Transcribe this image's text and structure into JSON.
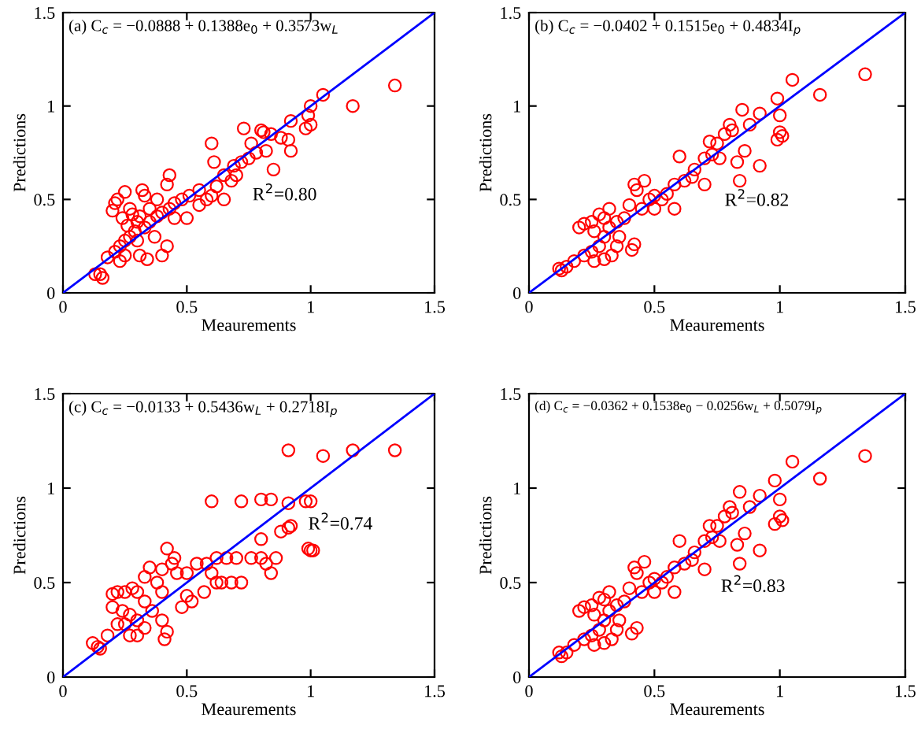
{
  "chart_data": [
    {
      "type": "scatter",
      "title": "(a) C$_{c}$ = −0.0888 + 0.1388e$_{0}$ + 0.3573w$_{L}$",
      "xlabel": "Meaurements",
      "ylabel": "Predictions",
      "annotations": [
        "R$^{2}$=0.80"
      ],
      "xlim": [
        0,
        1.5
      ],
      "ylim": [
        0,
        1.5
      ],
      "xticks": [
        0,
        0.5,
        1,
        1.5
      ],
      "yticks": [
        0,
        0.5,
        1,
        1.5
      ],
      "grid": false,
      "series": [
        {
          "marker": "circle",
          "color": "#ff0000",
          "x": [
            1.34,
            1.17,
            1.05,
            1.0,
            0.99,
            0.98,
            1.0,
            0.92,
            0.92,
            0.91,
            0.85,
            0.81,
            0.8,
            0.84,
            0.73,
            0.76,
            0.82,
            0.88,
            0.6,
            0.61,
            0.69,
            0.72,
            0.65,
            0.68,
            0.62,
            0.55,
            0.51,
            0.48,
            0.45,
            0.43,
            0.42,
            0.43,
            0.4,
            0.38,
            0.35,
            0.32,
            0.33,
            0.25,
            0.22,
            0.21,
            0.2,
            0.24,
            0.27,
            0.28,
            0.3,
            0.29,
            0.27,
            0.25,
            0.23,
            0.21,
            0.25,
            0.31,
            0.34,
            0.23,
            0.18,
            0.15,
            0.13,
            0.16,
            0.4,
            0.42,
            0.37,
            0.3,
            0.33,
            0.5,
            0.55,
            0.6,
            0.65,
            0.58,
            0.38,
            0.45,
            0.35,
            0.26,
            0.31,
            0.7,
            0.75,
            0.78
          ],
          "values": [
            1.11,
            1.0,
            1.06,
            1.0,
            0.95,
            0.88,
            0.9,
            0.92,
            0.76,
            0.82,
            0.66,
            0.86,
            0.87,
            0.85,
            0.88,
            0.8,
            0.76,
            0.83,
            0.8,
            0.7,
            0.68,
            0.7,
            0.63,
            0.6,
            0.57,
            0.55,
            0.52,
            0.5,
            0.48,
            0.63,
            0.58,
            0.45,
            0.43,
            0.41,
            0.38,
            0.55,
            0.52,
            0.54,
            0.5,
            0.48,
            0.44,
            0.4,
            0.45,
            0.42,
            0.38,
            0.33,
            0.3,
            0.28,
            0.25,
            0.22,
            0.2,
            0.2,
            0.18,
            0.17,
            0.19,
            0.1,
            0.1,
            0.08,
            0.2,
            0.25,
            0.3,
            0.28,
            0.35,
            0.4,
            0.47,
            0.52,
            0.5,
            0.5,
            0.5,
            0.4,
            0.45,
            0.36,
            0.41,
            0.63,
            0.72,
            0.75
          ]
        },
        {
          "type": "line",
          "color": "#0000ff",
          "x": [
            0,
            1.5
          ],
          "values": [
            0,
            1.5
          ]
        }
      ]
    },
    {
      "type": "scatter",
      "title": "(b) C$_{c}$ = −0.0402 + 0.1515e$_{0}$ + 0.4834I$_{p}$",
      "xlabel": "Meaurements",
      "ylabel": "Predictions",
      "annotations": [
        "R$^{2}$=0.82"
      ],
      "xlim": [
        0,
        1.5
      ],
      "ylim": [
        0,
        1.5
      ],
      "xticks": [
        0,
        0.5,
        1,
        1.5
      ],
      "yticks": [
        0,
        0.5,
        1,
        1.5
      ],
      "grid": false,
      "series": [
        {
          "marker": "circle",
          "color": "#ff0000",
          "x": [
            1.34,
            1.16,
            1.05,
            0.99,
            1.0,
            1.0,
            0.99,
            1.01,
            0.92,
            0.92,
            0.88,
            0.85,
            0.84,
            0.86,
            0.83,
            0.8,
            0.81,
            0.78,
            0.75,
            0.72,
            0.7,
            0.7,
            0.66,
            0.6,
            0.62,
            0.58,
            0.55,
            0.58,
            0.5,
            0.48,
            0.46,
            0.42,
            0.43,
            0.4,
            0.45,
            0.41,
            0.42,
            0.38,
            0.35,
            0.32,
            0.3,
            0.28,
            0.25,
            0.22,
            0.2,
            0.26,
            0.3,
            0.28,
            0.25,
            0.22,
            0.26,
            0.3,
            0.33,
            0.35,
            0.18,
            0.15,
            0.13,
            0.12,
            0.32,
            0.36,
            0.5,
            0.53,
            0.65,
            0.73,
            0.76
          ],
          "values": [
            1.17,
            1.06,
            1.14,
            1.04,
            0.95,
            0.86,
            0.82,
            0.84,
            0.96,
            0.68,
            0.9,
            0.98,
            0.6,
            0.76,
            0.7,
            0.9,
            0.87,
            0.85,
            0.8,
            0.81,
            0.72,
            0.58,
            0.66,
            0.73,
            0.6,
            0.58,
            0.53,
            0.45,
            0.52,
            0.5,
            0.6,
            0.58,
            0.55,
            0.47,
            0.45,
            0.23,
            0.26,
            0.4,
            0.38,
            0.45,
            0.4,
            0.42,
            0.38,
            0.37,
            0.35,
            0.33,
            0.3,
            0.25,
            0.22,
            0.2,
            0.17,
            0.18,
            0.2,
            0.25,
            0.17,
            0.14,
            0.12,
            0.13,
            0.35,
            0.3,
            0.45,
            0.5,
            0.62,
            0.74,
            0.72
          ]
        },
        {
          "type": "line",
          "color": "#0000ff",
          "x": [
            0,
            1.5
          ],
          "values": [
            0,
            1.5
          ]
        }
      ]
    },
    {
      "type": "scatter",
      "title": "(c) C$_{c}$ = −0.0133 + 0.5436w$_{L}$ + 0.2718I$_{p}$",
      "xlabel": "Meaurements",
      "ylabel": "Predictions",
      "annotations": [
        "R$^{2}$=0.74"
      ],
      "xlim": [
        0,
        1.5
      ],
      "ylim": [
        0,
        1.5
      ],
      "xticks": [
        0,
        0.5,
        1,
        1.5
      ],
      "yticks": [
        0,
        0.5,
        1,
        1.5
      ],
      "grid": false,
      "series": [
        {
          "marker": "circle",
          "color": "#ff0000",
          "x": [
            1.34,
            1.17,
            1.05,
            0.91,
            0.6,
            0.72,
            0.8,
            0.84,
            0.91,
            0.98,
            1.0,
            0.92,
            0.91,
            0.88,
            0.8,
            0.99,
            1.0,
            1.01,
            0.86,
            0.84,
            0.82,
            0.8,
            0.76,
            0.7,
            0.66,
            0.62,
            0.58,
            0.54,
            0.72,
            0.68,
            0.64,
            0.62,
            0.57,
            0.52,
            0.5,
            0.48,
            0.46,
            0.44,
            0.42,
            0.45,
            0.4,
            0.35,
            0.33,
            0.38,
            0.4,
            0.41,
            0.42,
            0.4,
            0.36,
            0.33,
            0.3,
            0.28,
            0.25,
            0.22,
            0.2,
            0.2,
            0.24,
            0.27,
            0.3,
            0.25,
            0.22,
            0.27,
            0.3,
            0.18,
            0.15,
            0.12,
            0.14,
            0.33,
            0.5,
            0.6
          ],
          "values": [
            1.2,
            1.2,
            1.17,
            1.2,
            0.93,
            0.93,
            0.94,
            0.94,
            0.92,
            0.93,
            0.93,
            0.8,
            0.79,
            0.77,
            0.73,
            0.68,
            0.67,
            0.67,
            0.63,
            0.55,
            0.6,
            0.63,
            0.63,
            0.63,
            0.63,
            0.63,
            0.6,
            0.6,
            0.5,
            0.5,
            0.5,
            0.5,
            0.45,
            0.4,
            0.43,
            0.37,
            0.55,
            0.6,
            0.68,
            0.63,
            0.57,
            0.58,
            0.53,
            0.5,
            0.45,
            0.2,
            0.24,
            0.3,
            0.35,
            0.4,
            0.45,
            0.47,
            0.45,
            0.45,
            0.44,
            0.37,
            0.35,
            0.33,
            0.3,
            0.28,
            0.28,
            0.22,
            0.22,
            0.22,
            0.15,
            0.18,
            0.16,
            0.26,
            0.55,
            0.55
          ]
        },
        {
          "type": "line",
          "color": "#0000ff",
          "x": [
            0,
            1.5
          ],
          "values": [
            0,
            1.5
          ]
        }
      ]
    },
    {
      "type": "scatter",
      "title": "(d) C$_{c}$ = −0.0362 + 0.1538e$_{0}$ − 0.0256w$_{L}$ + 0.5079I$_{p}$",
      "xlabel": "Meaurements",
      "ylabel": "Predictions",
      "annotations": [
        "R$^{2}$=0.83"
      ],
      "xlim": [
        0,
        1.5
      ],
      "ylim": [
        0,
        1.5
      ],
      "xticks": [
        0,
        0.5,
        1,
        1.5
      ],
      "yticks": [
        0,
        0.5,
        1,
        1.5
      ],
      "grid": false,
      "series": [
        {
          "marker": "circle",
          "color": "#ff0000",
          "x": [
            1.34,
            1.16,
            1.05,
            0.98,
            1.0,
            1.0,
            0.98,
            1.01,
            0.92,
            0.92,
            0.88,
            0.84,
            0.84,
            0.86,
            0.83,
            0.8,
            0.81,
            0.78,
            0.75,
            0.72,
            0.7,
            0.7,
            0.66,
            0.6,
            0.62,
            0.58,
            0.55,
            0.58,
            0.5,
            0.48,
            0.46,
            0.42,
            0.43,
            0.4,
            0.45,
            0.41,
            0.43,
            0.38,
            0.35,
            0.32,
            0.3,
            0.28,
            0.25,
            0.22,
            0.2,
            0.26,
            0.3,
            0.28,
            0.25,
            0.22,
            0.26,
            0.3,
            0.33,
            0.35,
            0.18,
            0.15,
            0.13,
            0.12,
            0.32,
            0.36,
            0.5,
            0.53,
            0.65,
            0.73,
            0.76
          ],
          "values": [
            1.17,
            1.05,
            1.14,
            1.04,
            0.94,
            0.85,
            0.81,
            0.83,
            0.96,
            0.67,
            0.9,
            0.98,
            0.6,
            0.76,
            0.7,
            0.9,
            0.87,
            0.85,
            0.8,
            0.8,
            0.72,
            0.57,
            0.66,
            0.72,
            0.6,
            0.58,
            0.53,
            0.45,
            0.52,
            0.5,
            0.61,
            0.58,
            0.55,
            0.47,
            0.45,
            0.23,
            0.26,
            0.4,
            0.38,
            0.45,
            0.41,
            0.42,
            0.38,
            0.37,
            0.35,
            0.33,
            0.3,
            0.25,
            0.22,
            0.2,
            0.17,
            0.18,
            0.2,
            0.25,
            0.17,
            0.13,
            0.11,
            0.13,
            0.35,
            0.3,
            0.45,
            0.5,
            0.62,
            0.74,
            0.72
          ]
        },
        {
          "type": "line",
          "color": "#0000ff",
          "x": [
            0,
            1.5
          ],
          "values": [
            0,
            1.5
          ]
        }
      ]
    }
  ]
}
